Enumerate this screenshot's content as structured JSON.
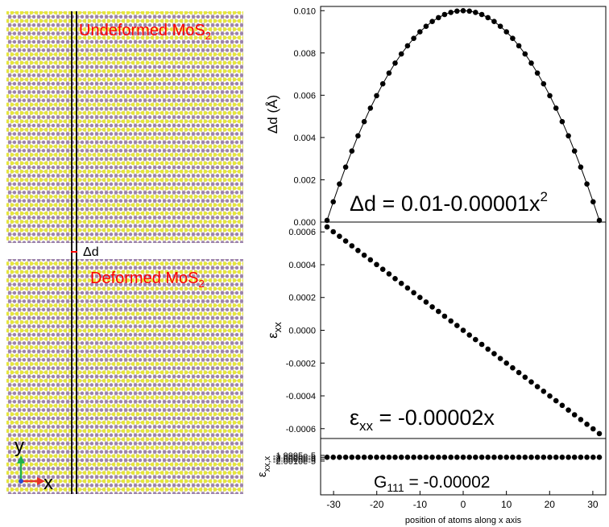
{
  "figure": {
    "lattice": {
      "label_undeformed": "Undeformed MoS",
      "label_undeformed_sub": "2",
      "label_deformed": "Deformed MoS",
      "label_deformed_sub": "2",
      "delta_label": "Δd",
      "axis_y": "y",
      "axis_x": "x",
      "colors": {
        "mo_atom": "#9b82ad",
        "s_atom": "#e6e63a",
        "bond": "#cfc2b2",
        "label": "#ff0000",
        "axis_x_arrow": "#e8332a",
        "axis_y_arrow": "#22b14c",
        "axis_origin": "#2b4bd3"
      }
    }
  },
  "chart_data": [
    {
      "type": "line",
      "ylabel": "Δd (Å)",
      "ylim": [
        0,
        0.0102
      ],
      "yticks": [
        "0.000",
        "0.002",
        "0.004",
        "0.006",
        "0.008",
        "0.010"
      ],
      "xlim": [
        -33,
        33
      ],
      "x": [
        -31.5,
        -30.07,
        -28.64,
        -27.2,
        -25.77,
        -24.34,
        -22.91,
        -21.48,
        -20.05,
        -18.61,
        -17.18,
        -15.75,
        -14.32,
        -12.89,
        -11.45,
        -10.02,
        -8.59,
        -7.16,
        -5.73,
        -4.3,
        -2.86,
        -1.43,
        0,
        1.43,
        2.86,
        4.3,
        5.73,
        7.16,
        8.59,
        10.02,
        11.45,
        12.89,
        14.32,
        15.75,
        17.18,
        18.61,
        20.05,
        21.48,
        22.91,
        24.34,
        25.77,
        27.2,
        28.64,
        30.07,
        31.5
      ],
      "y": [
        8e-05,
        0.00096,
        0.0018,
        0.0026,
        0.00336,
        0.00408,
        0.00475,
        0.00539,
        0.00598,
        0.00654,
        0.00705,
        0.00752,
        0.00795,
        0.00834,
        0.00869,
        0.009,
        0.00926,
        0.00949,
        0.00967,
        0.00982,
        0.00992,
        0.00998,
        0.01,
        0.00998,
        0.00992,
        0.00982,
        0.00967,
        0.00949,
        0.00926,
        0.009,
        0.00869,
        0.00834,
        0.00795,
        0.00752,
        0.00705,
        0.00654,
        0.00598,
        0.00539,
        0.00475,
        0.00408,
        0.00336,
        0.0026,
        0.0018,
        0.00096,
        8e-05
      ],
      "annotation": "Δd = 0.01-0.00001x",
      "annotation_sup": "2"
    },
    {
      "type": "scatter",
      "ylabel": "ε",
      "ylabel_sub": "xx",
      "ylim": [
        -0.00066,
        0.00066
      ],
      "yticks": [
        "-0.0006",
        "-0.0004",
        "-0.0002",
        "0.0000",
        "0.0002",
        "0.0004",
        "0.0006"
      ],
      "xlim": [
        -33,
        33
      ],
      "x": [
        -31.5,
        -30.07,
        -28.64,
        -27.2,
        -25.77,
        -24.34,
        -22.91,
        -21.48,
        -20.05,
        -18.61,
        -17.18,
        -15.75,
        -14.32,
        -12.89,
        -11.45,
        -10.02,
        -8.59,
        -7.16,
        -5.73,
        -4.3,
        -2.86,
        -1.43,
        0,
        1.43,
        2.86,
        4.3,
        5.73,
        7.16,
        8.59,
        10.02,
        11.45,
        12.89,
        14.32,
        15.75,
        17.18,
        18.61,
        20.05,
        21.48,
        22.91,
        24.34,
        25.77,
        27.2,
        28.64,
        30.07,
        31.5
      ],
      "y": [
        0.00063,
        0.000601,
        0.000573,
        0.000544,
        0.000515,
        0.000487,
        0.000458,
        0.00043,
        0.000401,
        0.000372,
        0.000344,
        0.000315,
        0.000286,
        0.000258,
        0.000229,
        0.0002,
        0.000172,
        0.000143,
        0.000115,
        8.6e-05,
        5.7e-05,
        2.9e-05,
        0,
        -2.9e-05,
        -5.7e-05,
        -8.6e-05,
        -0.000115,
        -0.000143,
        -0.000172,
        -0.0002,
        -0.000229,
        -0.000258,
        -0.000286,
        -0.000315,
        -0.000344,
        -0.000372,
        -0.000401,
        -0.00043,
        -0.000458,
        -0.000487,
        -0.000515,
        -0.000544,
        -0.000573,
        -0.000601,
        -0.00063
      ],
      "annotation": "ε",
      "annotation_sub": "xx",
      "annotation_rest": " = -0.00002x"
    },
    {
      "type": "scatter",
      "ylabel": "ε",
      "ylabel_sub": "xx,x",
      "ylim": [
        -2.01e-05,
        -1.995e-05
      ],
      "yticks": [
        "-1.9995e-5",
        "-2.0000e-5",
        "-2.0005e-5",
        "-2.0010e-5"
      ],
      "ytick_values": [
        -1.9995e-05,
        -2e-05,
        -2.0005e-05,
        -2.001e-05
      ],
      "xlim": [
        -33,
        33
      ],
      "xticks": [
        "-30",
        "-20",
        "-10",
        "0",
        "10",
        "20",
        "30"
      ],
      "xtick_values": [
        -30,
        -20,
        -10,
        0,
        10,
        20,
        30
      ],
      "xlabel": "position of atoms along x axis",
      "x": [
        -31.5,
        -30.07,
        -28.64,
        -27.2,
        -25.77,
        -24.34,
        -22.91,
        -21.48,
        -20.05,
        -18.61,
        -17.18,
        -15.75,
        -14.32,
        -12.89,
        -11.45,
        -10.02,
        -8.59,
        -7.16,
        -5.73,
        -4.3,
        -2.86,
        -1.43,
        0,
        1.43,
        2.86,
        4.3,
        5.73,
        7.16,
        8.59,
        10.02,
        11.45,
        12.89,
        14.32,
        15.75,
        17.18,
        18.61,
        20.05,
        21.48,
        22.91,
        24.34,
        25.77,
        27.2,
        28.64,
        30.07,
        31.5
      ],
      "y_constant": -2e-05,
      "annotation": "G",
      "annotation_sub": "111",
      "annotation_rest": " = -0.00002"
    }
  ]
}
